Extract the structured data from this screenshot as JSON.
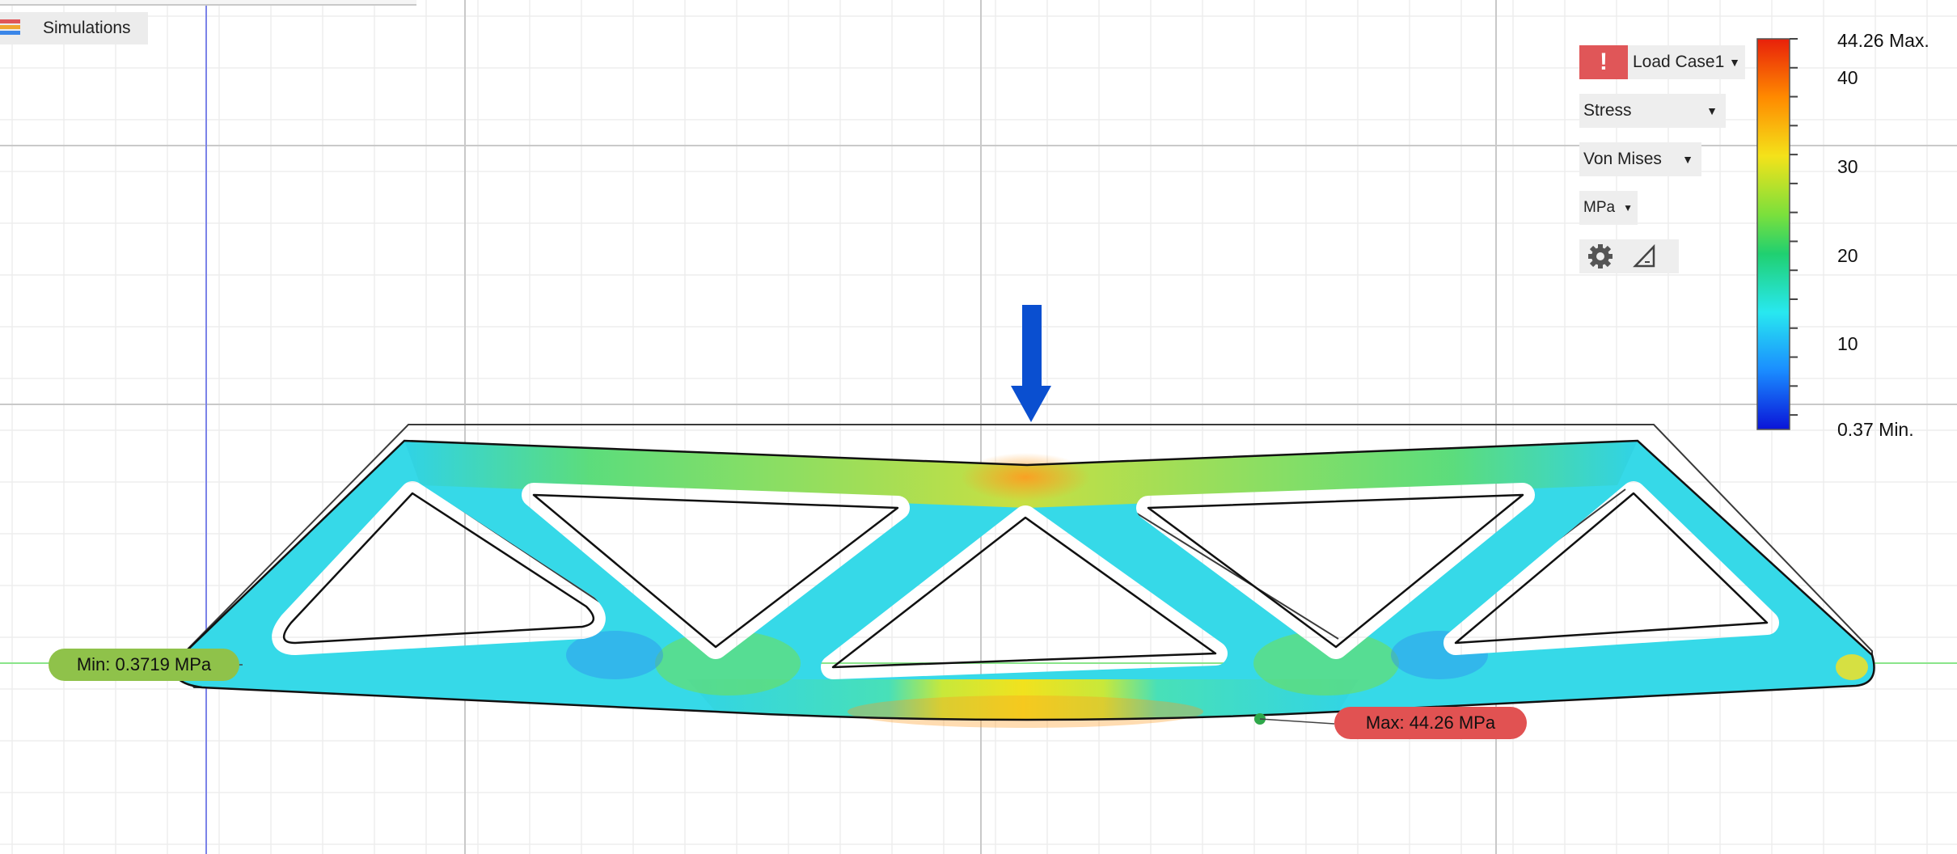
{
  "sidebar": {
    "simulations_label": "Simulations",
    "simulations_icon": "stacked-bars-icon"
  },
  "toolbar": {
    "alert_icon_text": "!",
    "load_case": "Load Case1",
    "result_type": "Stress",
    "result_mode": "Von Mises",
    "unit": "MPa",
    "settings_icon": "gear-icon",
    "probe_icon": "triangle-ruler-icon"
  },
  "legend": {
    "max_label": "44.26 Max.",
    "min_label": "0.37 Min.",
    "ticks": [
      "40",
      "30",
      "20",
      "10"
    ],
    "colors": [
      "#e8200a",
      "#ff8a00",
      "#f4e21a",
      "#7be03c",
      "#20d070",
      "#28e8f0",
      "#1a8cff",
      "#0a14d8"
    ]
  },
  "probes": {
    "min_tag": "Min: 0.3719 MPa",
    "max_tag": "Max: 44.26 MPa",
    "min_color": "#8fc24a",
    "max_color": "#e15252"
  },
  "load": {
    "arrow_color": "#0a4fd0",
    "direction": "down"
  }
}
